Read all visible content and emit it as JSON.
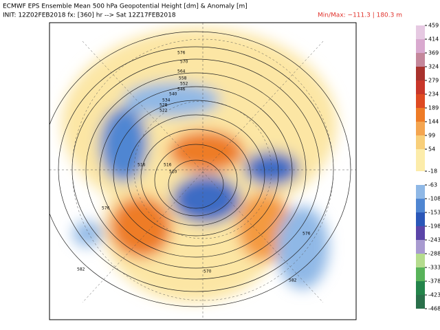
{
  "header": {
    "title": "ECMWF EPS Ensemble Mean 500 hPa Geopotential Height [dm] & Anomaly [m]",
    "init": "INIT: 12Z02FEB2018 fx: [360] hr --> Sat 12Z17FEB2018",
    "minmax": "Min/Max: −111.3 | 180.3 m"
  },
  "colorbar": {
    "ticks": [
      459,
      414,
      369,
      324,
      279,
      234,
      189,
      144,
      99,
      54,
      -18,
      -63,
      -108,
      -153,
      -198,
      -243,
      -288,
      -333,
      -378,
      -423,
      -468
    ],
    "colors": [
      "#e6c9e2",
      "#d9a9cf",
      "#c4879b",
      "#a8322d",
      "#c8362a",
      "#de4a22",
      "#ee7b26",
      "#f4a550",
      "#f8cf7a",
      "#fcecaa",
      "#ffffff",
      "#8fb8e6",
      "#4f86d2",
      "#2b57b8",
      "#5b45a8",
      "#a89ad0",
      "#b5dc8e",
      "#58b35a",
      "#23844a",
      "#2a6f4a"
    ]
  },
  "map": {
    "contour_labels": [
      576,
      570,
      564,
      558,
      552,
      546,
      540,
      534,
      528,
      522,
      516,
      516,
      510,
      576,
      576,
      582,
      582,
      570
    ]
  }
}
